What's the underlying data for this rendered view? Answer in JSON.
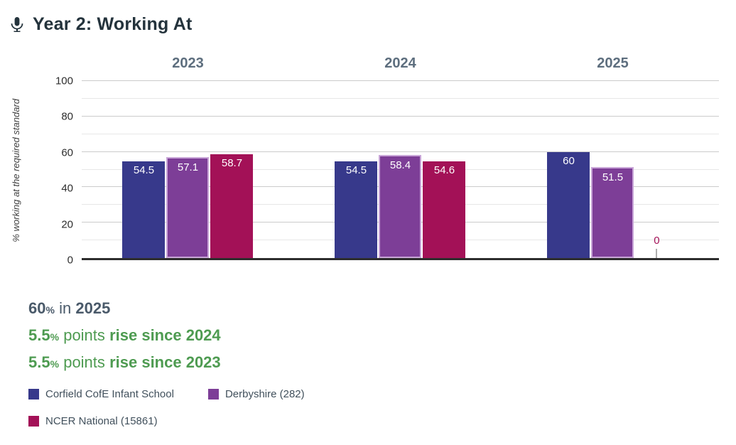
{
  "header": {
    "title": "Year 2: Working At",
    "icon": "microphone-icon"
  },
  "chart_data": {
    "type": "bar",
    "categories": [
      "2023",
      "2024",
      "2025"
    ],
    "series": [
      {
        "name": "Corfield CofE Infant School",
        "color": "#37398b",
        "values": [
          54.5,
          54.5,
          60
        ],
        "labels": [
          "54.5",
          "54.5",
          "60"
        ]
      },
      {
        "name": "Derbyshire (282)",
        "color": "#7d3e97",
        "border": "#c9a6d8",
        "values": [
          57.1,
          58.4,
          51.5
        ],
        "labels": [
          "57.1",
          "58.4",
          "51.5"
        ]
      },
      {
        "name": "NCER National (15861)",
        "color": "#a31157",
        "values": [
          58.7,
          54.6,
          0
        ],
        "labels": [
          "58.7",
          "54.6",
          "0"
        ]
      }
    ],
    "ylabel": "% working at the required standard",
    "ylim": [
      0,
      100
    ],
    "yticks": [
      0,
      20,
      40,
      60,
      80,
      100
    ],
    "grid": true,
    "legend_position": "bottom"
  },
  "summary": {
    "line1": {
      "value": "60",
      "pct": "%",
      "mid": "in",
      "bold": "2025"
    },
    "line2": {
      "value": "5.5",
      "pct": "%",
      "mid": "points",
      "bold": "rise since 2024"
    },
    "line3": {
      "value": "5.5",
      "pct": "%",
      "mid": "points",
      "bold": "rise since 2023"
    }
  },
  "legend": {
    "items": [
      {
        "label": "Corfield CofE Infant School",
        "color": "#37398b"
      },
      {
        "label": "Derbyshire (282)",
        "color": "#7d3e97"
      },
      {
        "label": "NCER National (15861)",
        "color": "#a31157"
      }
    ]
  }
}
